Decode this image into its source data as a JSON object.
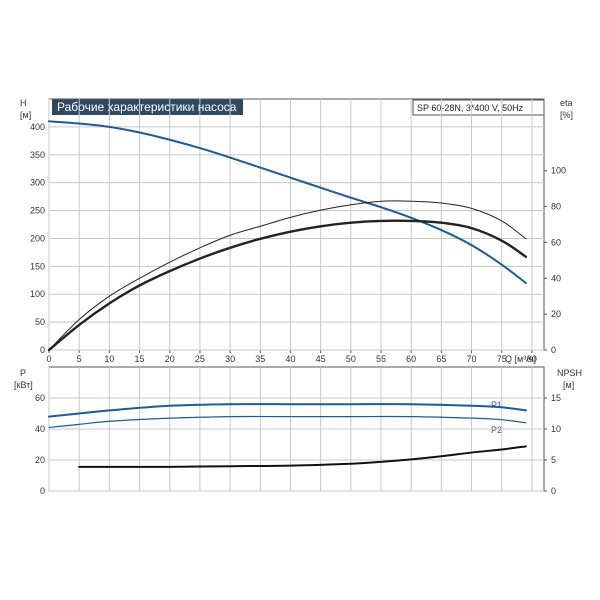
{
  "chart_data": [
    {
      "type": "line",
      "title": "Рабочие характеристики насоса",
      "info": "SP 60-28N, 3*400 V, 50Hz",
      "ylabel_left": "H",
      "ylabel_left_unit": "[м]",
      "ylabel_right": "eta",
      "ylabel_right_unit": "[%]",
      "xlabel": "Q [м³/ч]",
      "xlim": [
        0,
        82
      ],
      "ylim_left": [
        0,
        450
      ],
      "ylim_right": [
        0,
        140
      ],
      "x_ticks": [
        0,
        5,
        10,
        15,
        20,
        25,
        30,
        35,
        40,
        45,
        50,
        55,
        60,
        65,
        70,
        75,
        80
      ],
      "y_ticks_left": [
        0,
        50,
        100,
        150,
        200,
        250,
        300,
        350,
        400
      ],
      "y_ticks_right": [
        0,
        20,
        40,
        60,
        80,
        100
      ],
      "grid": true,
      "series": [
        {
          "axis": "left",
          "color": "#1f5a93",
          "x": [
            0,
            5,
            10,
            15,
            20,
            25,
            30,
            35,
            40,
            45,
            50,
            55,
            60,
            65,
            70,
            75,
            79
          ],
          "values": [
            410,
            406,
            400,
            390,
            377,
            362,
            345,
            327,
            309,
            291,
            273,
            256,
            237,
            215,
            188,
            153,
            120
          ]
        },
        {
          "axis": "right",
          "color": "#222222",
          "x": [
            0,
            5,
            10,
            15,
            20,
            25,
            30,
            35,
            40,
            45,
            50,
            55,
            60,
            65,
            70,
            75,
            79
          ],
          "values": [
            0,
            14,
            26,
            36,
            44,
            51,
            57,
            62,
            66,
            69,
            71,
            72,
            72,
            71,
            68,
            61,
            52
          ]
        },
        {
          "axis": "right",
          "color": "#222222",
          "x": [
            0,
            5,
            10,
            15,
            20,
            25,
            30,
            35,
            40,
            45,
            50,
            55,
            60,
            65,
            70,
            75,
            79
          ],
          "values": [
            0,
            17,
            30,
            40,
            49,
            57,
            64,
            69,
            74,
            78,
            81,
            83,
            83,
            82,
            79,
            72,
            62
          ]
        }
      ]
    },
    {
      "type": "line",
      "ylabel_left": "P",
      "ylabel_left_unit": "[кВт]",
      "ylabel_right": "NPSH",
      "ylabel_right_unit": "[м]",
      "xlim": [
        0,
        82
      ],
      "ylim_left": [
        0,
        80
      ],
      "ylim_right": [
        0,
        20
      ],
      "y_ticks_left": [
        0,
        20,
        40,
        60
      ],
      "y_ticks_right": [
        0,
        5,
        10,
        15
      ],
      "grid": true,
      "series": [
        {
          "name": "P1",
          "axis": "left",
          "color": "#1f5a93",
          "x": [
            0,
            5,
            10,
            20,
            30,
            40,
            50,
            60,
            70,
            75,
            79
          ],
          "values": [
            48,
            50,
            52,
            55,
            56,
            56,
            56,
            56,
            55,
            54,
            52
          ]
        },
        {
          "name": "P2",
          "axis": "left",
          "color": "#1f5a93",
          "x": [
            0,
            5,
            10,
            20,
            30,
            40,
            50,
            60,
            70,
            75,
            79
          ],
          "values": [
            41,
            43,
            45,
            47,
            48,
            48,
            48,
            48,
            47,
            46,
            44
          ]
        },
        {
          "axis": "right",
          "color": "#111111",
          "x": [
            5,
            10,
            20,
            30,
            40,
            50,
            55,
            60,
            65,
            70,
            75,
            79
          ],
          "values": [
            3.9,
            3.9,
            3.9,
            4.0,
            4.1,
            4.4,
            4.7,
            5.1,
            5.6,
            6.2,
            6.7,
            7.2
          ]
        }
      ]
    }
  ]
}
